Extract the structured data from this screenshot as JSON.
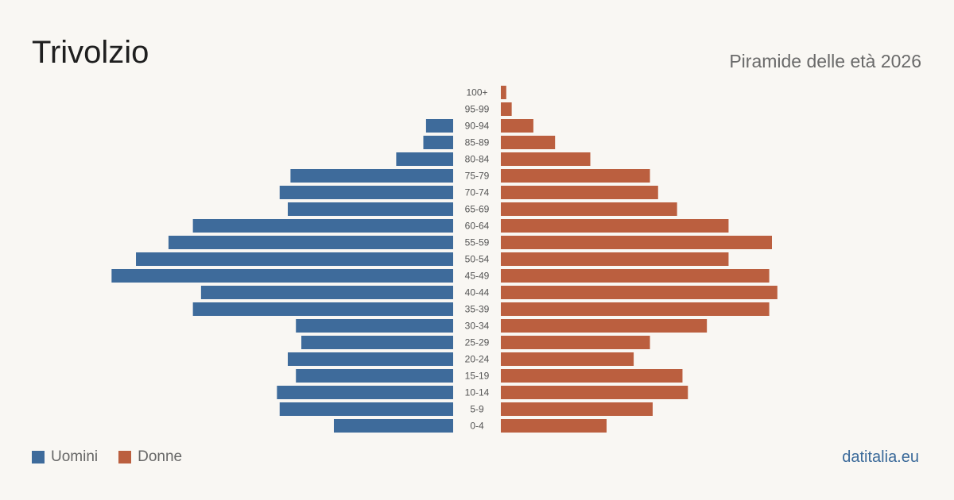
{
  "header": {
    "title": "Trivolzio",
    "subtitle": "Piramide delle età 2026"
  },
  "legend": {
    "men_label": "Uomini",
    "women_label": "Donne"
  },
  "footer": {
    "source": "datitalia.eu"
  },
  "colors": {
    "men": "#3e6b9b",
    "women": "#bb5f3f",
    "label": "#555555"
  },
  "chart_data": {
    "type": "bar",
    "orientation": "horizontal-pyramid",
    "categories": [
      "100+",
      "95-99",
      "90-94",
      "85-89",
      "80-84",
      "75-79",
      "70-74",
      "65-69",
      "60-64",
      "55-59",
      "50-54",
      "45-49",
      "40-44",
      "35-39",
      "30-34",
      "25-29",
      "20-24",
      "15-19",
      "10-14",
      "5-9",
      "0-4"
    ],
    "series": [
      {
        "name": "Uomini",
        "values": [
          0,
          0,
          10,
          11,
          21,
          60,
          64,
          61,
          96,
          105,
          117,
          126,
          93,
          96,
          58,
          56,
          61,
          58,
          65,
          64,
          44
        ]
      },
      {
        "name": "Donne",
        "values": [
          2,
          4,
          12,
          20,
          33,
          55,
          58,
          65,
          84,
          100,
          84,
          99,
          102,
          99,
          76,
          55,
          49,
          67,
          69,
          56,
          39
        ]
      }
    ],
    "legend_position": "bottom-left",
    "grid": false
  }
}
